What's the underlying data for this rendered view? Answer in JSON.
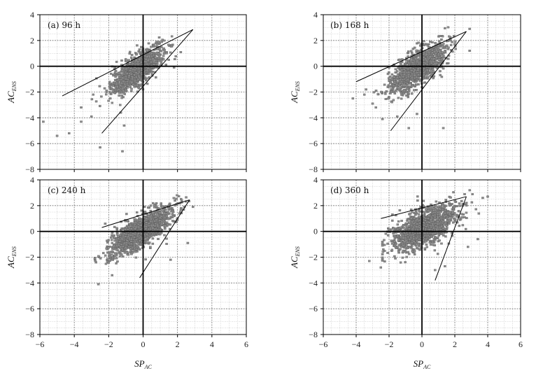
{
  "figure": {
    "xlabel_main": "SP",
    "xlabel_sub": "AC",
    "ylabel_main": "AC",
    "ylabel_sub": "ENS"
  },
  "chart_data": [
    {
      "type": "scatter",
      "panel_label": "(a) 96 h",
      "xlim": [
        -6,
        6
      ],
      "ylim": [
        -8,
        4
      ],
      "xticks": [
        "",
        "",
        "",
        "",
        "",
        "",
        ""
      ],
      "yticks": [
        "4",
        "2",
        "0",
        "−2",
        "−4",
        "−6",
        "−8"
      ],
      "grid": true,
      "cloud": {
        "count": 1100,
        "x_mean": -0.35,
        "x_sd": 0.75,
        "x_range": [
          -5.8,
          2.6
        ],
        "slope": 0.95,
        "intercept": 0.05,
        "noise_sd": 0.6
      },
      "outliers": [
        [
          -5.8,
          -4.3
        ],
        [
          -5.0,
          -5.4
        ],
        [
          -4.3,
          -5.2
        ],
        [
          -3.6,
          -4.3
        ],
        [
          -3.0,
          -3.9
        ],
        [
          -2.5,
          -6.3
        ],
        [
          -1.2,
          -6.6
        ],
        [
          -1.1,
          -4.6
        ],
        [
          -1.3,
          -3.6
        ],
        [
          1.8,
          -0.1
        ],
        [
          -3.6,
          -3.2
        ],
        [
          -2.9,
          -2.2
        ]
      ],
      "envelope": [
        [
          -4.7,
          -2.3
        ],
        [
          2.9,
          2.85
        ],
        [
          -2.4,
          -5.2
        ]
      ]
    },
    {
      "type": "scatter",
      "panel_label": "(b) 168 h",
      "xlim": [
        -6,
        6
      ],
      "ylim": [
        -8,
        4
      ],
      "xticks": [
        "",
        "",
        "",
        "",
        "",
        "",
        ""
      ],
      "yticks": [
        "4",
        "2",
        "0",
        "−2",
        "−4",
        "−6",
        "−8"
      ],
      "grid": true,
      "cloud": {
        "count": 1200,
        "x_mean": -0.3,
        "x_sd": 0.85,
        "x_range": [
          -4.2,
          2.9
        ],
        "slope": 0.8,
        "intercept": 0.1,
        "noise_sd": 0.65
      },
      "outliers": [
        [
          -4.2,
          -2.5
        ],
        [
          -3.5,
          -2.2
        ],
        [
          -3.0,
          -2.9
        ],
        [
          -2.4,
          -4.1
        ],
        [
          -1.5,
          -3.9
        ],
        [
          -0.8,
          -4.8
        ],
        [
          -0.3,
          -3.7
        ],
        [
          1.3,
          -4.8
        ],
        [
          2.9,
          1.2
        ],
        [
          2.9,
          2.9
        ],
        [
          -3.4,
          -1.8
        ],
        [
          -2.8,
          -3.2
        ]
      ],
      "envelope": [
        [
          -4.0,
          -1.2
        ],
        [
          2.7,
          2.7
        ],
        [
          -1.9,
          -5.0
        ]
      ]
    },
    {
      "type": "scatter",
      "panel_label": "(c) 240 h",
      "xlim": [
        -6,
        6
      ],
      "ylim": [
        -8,
        4
      ],
      "xticks": [
        "−6",
        "−4",
        "−2",
        "0",
        "2",
        "4",
        "6"
      ],
      "yticks": [
        "4",
        "2",
        "0",
        "−2",
        "−4",
        "−6",
        "−8"
      ],
      "grid": true,
      "cloud": {
        "count": 1300,
        "x_mean": -0.2,
        "x_sd": 0.9,
        "x_range": [
          -2.8,
          2.9
        ],
        "slope": 0.75,
        "intercept": 0.1,
        "noise_sd": 0.6
      },
      "outliers": [
        [
          -2.6,
          -4.1
        ],
        [
          -1.8,
          -3.4
        ],
        [
          -2.8,
          -2.1
        ],
        [
          2.6,
          -0.9
        ],
        [
          1.6,
          -2.2
        ],
        [
          2.4,
          1.9
        ],
        [
          -2.2,
          0.6
        ]
      ],
      "envelope": [
        [
          -2.4,
          0.3
        ],
        [
          2.7,
          2.45
        ],
        [
          -0.2,
          -3.6
        ]
      ]
    },
    {
      "type": "scatter",
      "panel_label": "(d) 360 h",
      "xlim": [
        -6,
        6
      ],
      "ylim": [
        -8,
        4
      ],
      "xticks": [
        "−6",
        "−4",
        "−2",
        "0",
        "2",
        "4",
        "6"
      ],
      "yticks": [
        "4",
        "2",
        "0",
        "−2",
        "−4",
        "−6",
        "−8"
      ],
      "grid": true,
      "cloud": {
        "count": 1400,
        "x_mean": 0.1,
        "x_sd": 1.0,
        "x_range": [
          -2.4,
          4.1
        ],
        "slope": 0.55,
        "intercept": 0.2,
        "noise_sd": 0.7
      },
      "outliers": [
        [
          -3.2,
          -2.3
        ],
        [
          -2.5,
          -2.8
        ],
        [
          0.8,
          -3.0
        ],
        [
          1.4,
          -2.7
        ],
        [
          2.8,
          -1.2
        ],
        [
          3.4,
          -0.6
        ],
        [
          4.0,
          2.7
        ],
        [
          3.7,
          2.6
        ]
      ],
      "envelope": [
        [
          -2.5,
          1.0
        ],
        [
          2.7,
          2.7
        ],
        [
          0.8,
          -3.8
        ]
      ]
    }
  ]
}
